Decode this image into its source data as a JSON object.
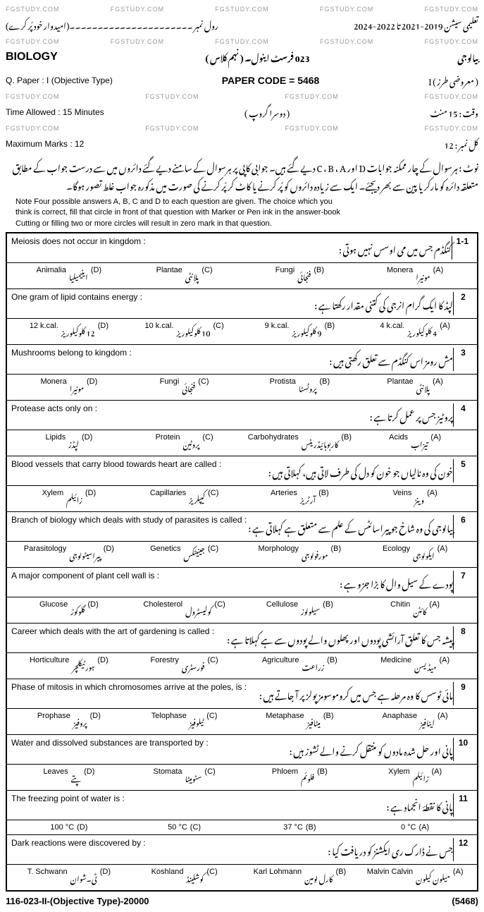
{
  "watermark": "FGSTUDY.COM",
  "header": {
    "sessions_ur": "تعلیمی سیشن  2019-2021 تا 2022-2024",
    "roll_ur": "رول نمبر ۔۔۔۔۔۔۔۔۔۔۔۔۔۔۔۔۔۔۔۔۔۔(امیدوار خود پُر کرے)",
    "biology": "BIOLOGY",
    "class_ur": "023  فرسٹ اینول۔ ( نہم کلاس )",
    "subject_ur": "بیالوجی",
    "qpaper": "Q. Paper : I (Objective Type)",
    "paper_code": "PAPER CODE = 5468",
    "obj_ur": "( معروضی طرز ) I",
    "time": "Time Allowed :  15 Minutes",
    "group_ur": "( دوسرا گروپ )",
    "time_ur": "وقت : 15 منٹ",
    "marks": "Maximum Marks :  12",
    "marks_ur": "کل نمبر : 12"
  },
  "note_urdu": "نوٹ : ہرسوال کے چار ممکنہ جوابات D اور C ، B ، A دیے گئے ہیں۔ جوابی کاپی پر ہرسوال کے سامنے دیے گئے دائروں میں سے درست جواب کے مطابق متعلقہ دائرہ کو مارکر یا پین سے بھر دیجئے۔ ایک سے زیادہ دائروں کو پُر کرنے یا کاٹ کر پُر کرنے کی صورت میں مذکورہ جواب غلط تصور ہوگا۔",
  "note_en_l1": "Note   Four possible answers A, B, C and D to each question are given. The choice which you",
  "note_en_l2": "think is correct, fill that circle in front of that question with Marker or Pen ink in the answer-book",
  "note_en_l3": "Cutting or filling two or more circles will result in zero mark in that question.",
  "questions": [
    {
      "num": "1-1",
      "en": "Meiosis does not occur in kingdom :",
      "ur": "کنگڈم جس میں می اوسس نہیں ہوتی :",
      "opts": [
        {
          "letter": "(A)",
          "en": "Monera",
          "ur": "مونیرا"
        },
        {
          "letter": "(B)",
          "en": "Fungi",
          "ur": "فنجائی"
        },
        {
          "letter": "(C)",
          "en": "Plantae",
          "ur": "پلانٹی"
        },
        {
          "letter": "(D)",
          "en": "Animalia",
          "ur": "اینیمیلیا"
        }
      ]
    },
    {
      "num": "2",
      "en": "One gram of lipid contains energy :",
      "ur": "لپڈ کا ایک گرام انرجی کی کتنی مقدار رکھتا ہے :",
      "opts": [
        {
          "letter": "(A)",
          "en": "4 k.cal.",
          "ur": "4 کلوکیلوریز"
        },
        {
          "letter": "(B)",
          "en": "9 k.cal.",
          "ur": "9 کلوکیلوریز"
        },
        {
          "letter": "(C)",
          "en": "10 k.cal.",
          "ur": "10 کلوکیلوریز"
        },
        {
          "letter": "(D)",
          "en": "12 k.cal.",
          "ur": "12 کلوکیلوریز"
        }
      ]
    },
    {
      "num": "3",
      "en": "Mushrooms belong to kingdom :",
      "ur": "مش رومز اس کنگڈم سے تعلق رکھتی ہیں :",
      "opts": [
        {
          "letter": "(A)",
          "en": "Plantae",
          "ur": "پلانٹی"
        },
        {
          "letter": "(B)",
          "en": "Protista",
          "ur": "پروٹسٹا"
        },
        {
          "letter": "(C)",
          "en": "Fungi",
          "ur": "فنجائی"
        },
        {
          "letter": "(D)",
          "en": "Monera",
          "ur": "مونیرا"
        }
      ]
    },
    {
      "num": "4",
      "en": "Protease acts only on :",
      "ur": "پروٹیز جس پر عمل کرتا ہے :",
      "opts": [
        {
          "letter": "(A)",
          "en": "Acids",
          "ur": "تیزاب"
        },
        {
          "letter": "(B)",
          "en": "Carbohydrates",
          "ur": "کاربوہائیڈریٹس"
        },
        {
          "letter": "(C)",
          "en": "Protein",
          "ur": "پروٹین"
        },
        {
          "letter": "(D)",
          "en": "Lipids",
          "ur": "لپڈز"
        }
      ]
    },
    {
      "num": "5",
      "en": "Blood vessels that carry blood towards heart are called :",
      "ur": "خون کی وہ نالیاں جو خون کو دل کی طرف لاتی ہیں، کہلاتی ہیں :",
      "opts": [
        {
          "letter": "(A)",
          "en": "Veins",
          "ur": "وینز"
        },
        {
          "letter": "(B)",
          "en": "Arteries",
          "ur": "آرٹریز"
        },
        {
          "letter": "(C)",
          "en": "Capillaries",
          "ur": "کیپلریز"
        },
        {
          "letter": "(D)",
          "en": "Xylem",
          "ur": "زائیلم"
        }
      ]
    },
    {
      "num": "6",
      "en": "Branch of biology which deals with study of parasites is called :",
      "ur": "بیالوجی کی وہ شاخ جو پیراسائٹس کے علم سے متعلق ہے کہلاتی ہے :",
      "opts": [
        {
          "letter": "(A)",
          "en": "Ecology",
          "ur": "ایکولوجی"
        },
        {
          "letter": "(B)",
          "en": "Morphology",
          "ur": "مورفولوجی"
        },
        {
          "letter": "(C)",
          "en": "Genetics",
          "ur": "جینیٹکس"
        },
        {
          "letter": "(D)",
          "en": "Parasitology",
          "ur": "پیراسیٹولوجی"
        }
      ]
    },
    {
      "num": "7",
      "en": "A major component of plant cell wall is :",
      "ur": "پودے کے سیل وال کا بڑا جزو ہے :",
      "opts": [
        {
          "letter": "(A)",
          "en": "Chitin",
          "ur": "کائٹن"
        },
        {
          "letter": "(B)",
          "en": "Cellulose",
          "ur": "سیلولوز"
        },
        {
          "letter": "(C)",
          "en": "Cholesterol",
          "ur": "کولیسٹرول"
        },
        {
          "letter": "(D)",
          "en": "Glucose",
          "ur": "گلوکوز"
        }
      ]
    },
    {
      "num": "8",
      "en": "Career which deals with the art of gardening is called :",
      "ur": "پیشہ جس کا تعلق آرائشی پودوں اور پھلوں والے پودوں سے ہے کہلاتا ہے :",
      "opts": [
        {
          "letter": "(A)",
          "en": "Medicine",
          "ur": "میڈیسن"
        },
        {
          "letter": "(B)",
          "en": "Agriculture",
          "ur": "زراعت"
        },
        {
          "letter": "(C)",
          "en": "Forestry",
          "ur": "فورسٹری"
        },
        {
          "letter": "(D)",
          "en": "Horticulture",
          "ur": "ہورٹیکلچر"
        }
      ]
    },
    {
      "num": "9",
      "en": "Phase of mitosis in which chromosomes arrive at the poles, is :",
      "ur": "مائی ٹوسس کا وہ مرحلہ ہے جس میں کروموسومز پولز پر آ جاتے ہیں :",
      "opts": [
        {
          "letter": "(A)",
          "en": "Anaphase",
          "ur": "اینافیز"
        },
        {
          "letter": "(B)",
          "en": "Metaphase",
          "ur": "میٹافیز"
        },
        {
          "letter": "(C)",
          "en": "Telophase",
          "ur": "ٹیلوفیز"
        },
        {
          "letter": "(D)",
          "en": "Prophase",
          "ur": "پروفیز"
        }
      ]
    },
    {
      "num": "10",
      "en": "Water and dissolved substances are transported by :",
      "ur": "پانی اور حل شدہ مادوں کو منتقل کرنے والے ٹشوز ہیں :",
      "opts": [
        {
          "letter": "(A)",
          "en": "Xylem",
          "ur": "زائیلم"
        },
        {
          "letter": "(B)",
          "en": "Phloem",
          "ur": "فلوئم"
        },
        {
          "letter": "(C)",
          "en": "Stomata",
          "ur": "سٹومیٹا"
        },
        {
          "letter": "(D)",
          "en": "Leaves",
          "ur": "پتے"
        }
      ]
    },
    {
      "num": "11",
      "en": "The freezing point of water is :",
      "ur": "پانی کا نقطۂ انجماد ہے :",
      "opts": [
        {
          "letter": "(A)",
          "en": "0 °C",
          "ur": ""
        },
        {
          "letter": "(B)",
          "en": "37 °C",
          "ur": ""
        },
        {
          "letter": "(C)",
          "en": "50 °C",
          "ur": ""
        },
        {
          "letter": "(D)",
          "en": "100 °C",
          "ur": ""
        }
      ]
    },
    {
      "num": "12",
      "en": "Dark reactions were discovered by :",
      "ur": "جس نے ڈارک ری ایکشنز کو دریافت کیا :",
      "opts": [
        {
          "letter": "(A)",
          "en": "Malvin Calvin",
          "ur": "میلون کیلون"
        },
        {
          "letter": "(B)",
          "en": "Karl Lohmann",
          "ur": "کارل لومین"
        },
        {
          "letter": "(C)",
          "en": "Koshland",
          "ur": "کوشلینڈ"
        },
        {
          "letter": "(D)",
          "en": "T. Schwann",
          "ur": "ٹی۔شوان"
        }
      ]
    }
  ],
  "footer_left": "116-023-II-(Objective Type)-20000",
  "footer_right": "(5468)"
}
